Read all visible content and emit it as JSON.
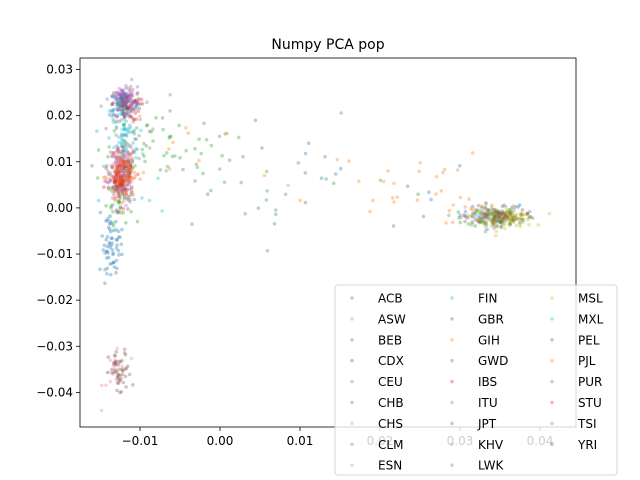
{
  "chart_data": {
    "type": "scatter",
    "title": "Numpy PCA pop",
    "xlabel": "",
    "ylabel": "",
    "xlim": [
      -0.0175,
      0.0445
    ],
    "ylim": [
      -0.0475,
      0.0325
    ],
    "xticks": [
      -0.01,
      0.0,
      0.01,
      0.02,
      0.03,
      0.04
    ],
    "xtick_labels": [
      "−0.01",
      "0.00",
      "0.01",
      "0.02",
      "0.03",
      "0.04"
    ],
    "yticks": [
      -0.04,
      -0.03,
      -0.02,
      -0.01,
      0.0,
      0.01,
      0.02,
      0.03
    ],
    "ytick_labels": [
      "−0.04",
      "−0.03",
      "−0.02",
      "−0.01",
      "0.00",
      "0.01",
      "0.02",
      "0.03"
    ],
    "grid": false,
    "legend_location": "lower-right",
    "legend_columns": 3,
    "series": [
      {
        "name": "ACB",
        "color": "#1f77b4",
        "clusters": [
          {
            "cx": 0.034,
            "cy": -0.0015,
            "sx": 0.002,
            "sy": 0.0012,
            "n": 45
          },
          {
            "cx": -0.0135,
            "cy": -0.006,
            "sx": 0.0007,
            "sy": 0.004,
            "n": 25
          },
          {
            "cx": 0.012,
            "cy": 0.004,
            "sx": 0.012,
            "sy": 0.006,
            "n": 20
          }
        ]
      },
      {
        "name": "ASW",
        "color": "#ff7f0e",
        "clusters": [
          {
            "cx": 0.033,
            "cy": -0.001,
            "sx": 0.0025,
            "sy": 0.0015,
            "n": 30
          },
          {
            "cx": 0.018,
            "cy": 0.006,
            "sx": 0.009,
            "sy": 0.004,
            "n": 25
          },
          {
            "cx": -0.005,
            "cy": 0.015,
            "sx": 0.005,
            "sy": 0.006,
            "n": 8
          }
        ]
      },
      {
        "name": "BEB",
        "color": "#2ca02c",
        "clusters": [
          {
            "cx": -0.0125,
            "cy": 0.003,
            "sx": 0.0008,
            "sy": 0.003,
            "n": 45
          },
          {
            "cx": -0.006,
            "cy": 0.012,
            "sx": 0.004,
            "sy": 0.004,
            "n": 25
          }
        ]
      },
      {
        "name": "CDX",
        "color": "#d62728",
        "clusters": [
          {
            "cx": -0.0122,
            "cy": 0.008,
            "sx": 0.0007,
            "sy": 0.0025,
            "n": 60
          }
        ]
      },
      {
        "name": "CEU",
        "color": "#9467bd",
        "clusters": [
          {
            "cx": -0.012,
            "cy": 0.023,
            "sx": 0.0009,
            "sy": 0.0015,
            "n": 55
          }
        ]
      },
      {
        "name": "CHB",
        "color": "#8c564b",
        "clusters": [
          {
            "cx": -0.012,
            "cy": 0.009,
            "sx": 0.0007,
            "sy": 0.002,
            "n": 55
          }
        ]
      },
      {
        "name": "CHS",
        "color": "#e377c2",
        "clusters": [
          {
            "cx": -0.0125,
            "cy": 0.0085,
            "sx": 0.0007,
            "sy": 0.002,
            "n": 50
          },
          {
            "cx": -0.013,
            "cy": -0.035,
            "sx": 0.0008,
            "sy": 0.0035,
            "n": 15
          }
        ]
      },
      {
        "name": "CLM",
        "color": "#7f7f7f",
        "clusters": [
          {
            "cx": -0.012,
            "cy": 0.018,
            "sx": 0.001,
            "sy": 0.004,
            "n": 30
          },
          {
            "cx": -0.008,
            "cy": 0.015,
            "sx": 0.003,
            "sy": 0.004,
            "n": 10
          }
        ]
      },
      {
        "name": "ESN",
        "color": "#bcbd22",
        "clusters": [
          {
            "cx": 0.0355,
            "cy": -0.002,
            "sx": 0.0018,
            "sy": 0.001,
            "n": 55
          }
        ]
      },
      {
        "name": "FIN",
        "color": "#17becf",
        "clusters": [
          {
            "cx": -0.012,
            "cy": 0.015,
            "sx": 0.0009,
            "sy": 0.004,
            "n": 40
          },
          {
            "cx": -0.011,
            "cy": 0.003,
            "sx": 0.002,
            "sy": 0.004,
            "n": 10
          }
        ]
      },
      {
        "name": "GBR",
        "color": "#1f77b4",
        "clusters": [
          {
            "cx": -0.012,
            "cy": 0.0225,
            "sx": 0.0009,
            "sy": 0.0015,
            "n": 50
          }
        ]
      },
      {
        "name": "GIH",
        "color": "#ff7f0e",
        "clusters": [
          {
            "cx": -0.0122,
            "cy": 0.006,
            "sx": 0.0008,
            "sy": 0.0025,
            "n": 50
          }
        ]
      },
      {
        "name": "GWD",
        "color": "#2ca02c",
        "clusters": [
          {
            "cx": 0.0345,
            "cy": -0.002,
            "sx": 0.0018,
            "sy": 0.001,
            "n": 50
          }
        ]
      },
      {
        "name": "IBS",
        "color": "#d62728",
        "clusters": [
          {
            "cx": -0.0118,
            "cy": 0.022,
            "sx": 0.0009,
            "sy": 0.0015,
            "n": 50
          }
        ]
      },
      {
        "name": "ITU",
        "color": "#9467bd",
        "clusters": [
          {
            "cx": -0.0124,
            "cy": 0.0045,
            "sx": 0.0008,
            "sy": 0.0025,
            "n": 50
          }
        ]
      },
      {
        "name": "JPT",
        "color": "#8c564b",
        "clusters": [
          {
            "cx": -0.0125,
            "cy": -0.036,
            "sx": 0.0007,
            "sy": 0.0025,
            "n": 50
          }
        ]
      },
      {
        "name": "KHV",
        "color": "#e377c2",
        "clusters": [
          {
            "cx": -0.0122,
            "cy": 0.0085,
            "sx": 0.0007,
            "sy": 0.0022,
            "n": 50
          }
        ]
      },
      {
        "name": "LWK",
        "color": "#7f7f7f",
        "clusters": [
          {
            "cx": 0.034,
            "cy": -0.002,
            "sx": 0.0018,
            "sy": 0.001,
            "n": 50
          }
        ]
      },
      {
        "name": "MSL",
        "color": "#bcbd22",
        "clusters": [
          {
            "cx": 0.0355,
            "cy": -0.0025,
            "sx": 0.0018,
            "sy": 0.001,
            "n": 50
          }
        ]
      },
      {
        "name": "MXL",
        "color": "#17becf",
        "clusters": [
          {
            "cx": -0.012,
            "cy": 0.016,
            "sx": 0.0009,
            "sy": 0.004,
            "n": 40
          }
        ]
      },
      {
        "name": "PEL",
        "color": "#1f77b4",
        "clusters": [
          {
            "cx": -0.0135,
            "cy": -0.009,
            "sx": 0.0007,
            "sy": 0.0025,
            "n": 40
          }
        ]
      },
      {
        "name": "PJL",
        "color": "#ff7f0e",
        "clusters": [
          {
            "cx": -0.0122,
            "cy": 0.007,
            "sx": 0.0008,
            "sy": 0.0025,
            "n": 50
          }
        ]
      },
      {
        "name": "PUR",
        "color": "#2ca02c",
        "clusters": [
          {
            "cx": -0.008,
            "cy": 0.014,
            "sx": 0.004,
            "sy": 0.004,
            "n": 30
          },
          {
            "cx": 0.006,
            "cy": 0.005,
            "sx": 0.008,
            "sy": 0.006,
            "n": 20
          }
        ]
      },
      {
        "name": "STU",
        "color": "#d62728",
        "clusters": [
          {
            "cx": -0.0124,
            "cy": 0.006,
            "sx": 0.0008,
            "sy": 0.0025,
            "n": 50
          }
        ]
      },
      {
        "name": "TSI",
        "color": "#9467bd",
        "clusters": [
          {
            "cx": -0.0118,
            "cy": 0.0235,
            "sx": 0.0009,
            "sy": 0.0015,
            "n": 50
          }
        ]
      },
      {
        "name": "YRI",
        "color": "#8c564b",
        "clusters": [
          {
            "cx": 0.035,
            "cy": -0.002,
            "sx": 0.0018,
            "sy": 0.001,
            "n": 50
          }
        ]
      }
    ]
  }
}
